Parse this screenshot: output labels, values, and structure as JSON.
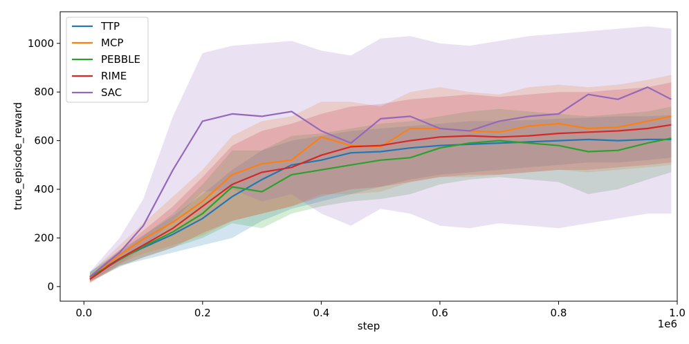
{
  "chart_data": {
    "type": "line",
    "title": "",
    "xlabel": "step",
    "ylabel": "true_episode_reward",
    "x_offset_label": "1e6",
    "xlim": [
      -0.04,
      1.0
    ],
    "ylim": [
      -60,
      1130
    ],
    "x_ticks": [
      0.0,
      0.2,
      0.4,
      0.6,
      0.8,
      1.0
    ],
    "x_tick_labels": [
      "0.0",
      "0.2",
      "0.4",
      "0.6",
      "0.8",
      "1.0"
    ],
    "y_ticks": [
      0,
      200,
      400,
      600,
      800,
      1000
    ],
    "y_tick_labels": [
      "0",
      "200",
      "400",
      "600",
      "800",
      "1000"
    ],
    "grid": false,
    "legend_position": "top-left",
    "x": [
      0.01,
      0.06,
      0.1,
      0.15,
      0.2,
      0.25,
      0.3,
      0.35,
      0.4,
      0.45,
      0.5,
      0.55,
      0.6,
      0.65,
      0.7,
      0.75,
      0.8,
      0.85,
      0.9,
      0.95,
      0.99
    ],
    "series": [
      {
        "name": "TTP",
        "color": "#1f77b4",
        "values": [
          40,
          115,
          160,
          215,
          280,
          370,
          440,
          500,
          520,
          550,
          555,
          570,
          580,
          585,
          590,
          595,
          600,
          605,
          600,
          605,
          605
        ],
        "lower": [
          20,
          85,
          110,
          140,
          170,
          200,
          270,
          320,
          350,
          380,
          410,
          440,
          460,
          470,
          480,
          490,
          500,
          510,
          510,
          520,
          530
        ],
        "upper": [
          60,
          150,
          210,
          290,
          380,
          480,
          560,
          600,
          620,
          640,
          650,
          660,
          670,
          680,
          680,
          685,
          690,
          695,
          700,
          700,
          705
        ]
      },
      {
        "name": "MCP",
        "color": "#ff7f0e",
        "values": [
          35,
          130,
          195,
          265,
          350,
          460,
          505,
          520,
          615,
          580,
          575,
          650,
          650,
          640,
          635,
          660,
          670,
          650,
          655,
          680,
          700
        ],
        "lower": [
          15,
          95,
          135,
          170,
          210,
          270,
          300,
          330,
          380,
          380,
          390,
          430,
          450,
          450,
          460,
          470,
          480,
          470,
          480,
          490,
          500
        ],
        "upper": [
          55,
          170,
          260,
          370,
          480,
          620,
          680,
          700,
          760,
          760,
          740,
          800,
          820,
          800,
          790,
          820,
          830,
          820,
          830,
          850,
          870
        ]
      },
      {
        "name": "PEBBLE",
        "color": "#2ca02c",
        "values": [
          40,
          110,
          165,
          225,
          300,
          410,
          390,
          460,
          480,
          500,
          520,
          530,
          570,
          590,
          600,
          590,
          580,
          555,
          560,
          590,
          610
        ],
        "lower": [
          20,
          80,
          120,
          160,
          200,
          260,
          240,
          300,
          330,
          350,
          360,
          380,
          420,
          440,
          450,
          440,
          430,
          380,
          400,
          440,
          470
        ],
        "upper": [
          60,
          140,
          210,
          300,
          420,
          560,
          560,
          620,
          630,
          650,
          670,
          680,
          700,
          720,
          730,
          720,
          710,
          700,
          710,
          720,
          740
        ]
      },
      {
        "name": "RIME",
        "color": "#d62728",
        "values": [
          30,
          115,
          170,
          240,
          330,
          420,
          470,
          490,
          540,
          575,
          580,
          600,
          615,
          620,
          615,
          620,
          630,
          635,
          640,
          650,
          665
        ],
        "lower": [
          15,
          85,
          120,
          160,
          220,
          270,
          300,
          330,
          370,
          400,
          410,
          430,
          450,
          460,
          460,
          470,
          480,
          480,
          490,
          500,
          510
        ],
        "upper": [
          45,
          150,
          230,
          330,
          450,
          580,
          640,
          670,
          710,
          740,
          750,
          770,
          780,
          790,
          780,
          790,
          800,
          800,
          810,
          820,
          840
        ]
      },
      {
        "name": "SAC",
        "color": "#9467bd",
        "values": [
          40,
          140,
          250,
          480,
          680,
          710,
          700,
          720,
          640,
          590,
          690,
          700,
          650,
          640,
          680,
          700,
          710,
          790,
          770,
          820,
          770
        ],
        "lower": [
          20,
          90,
          160,
          270,
          390,
          400,
          350,
          380,
          300,
          250,
          320,
          300,
          250,
          240,
          260,
          250,
          240,
          260,
          280,
          300,
          300
        ],
        "upper": [
          60,
          200,
          360,
          700,
          960,
          990,
          1000,
          1010,
          970,
          950,
          1020,
          1030,
          1000,
          990,
          1010,
          1030,
          1040,
          1050,
          1060,
          1070,
          1060
        ]
      }
    ]
  }
}
